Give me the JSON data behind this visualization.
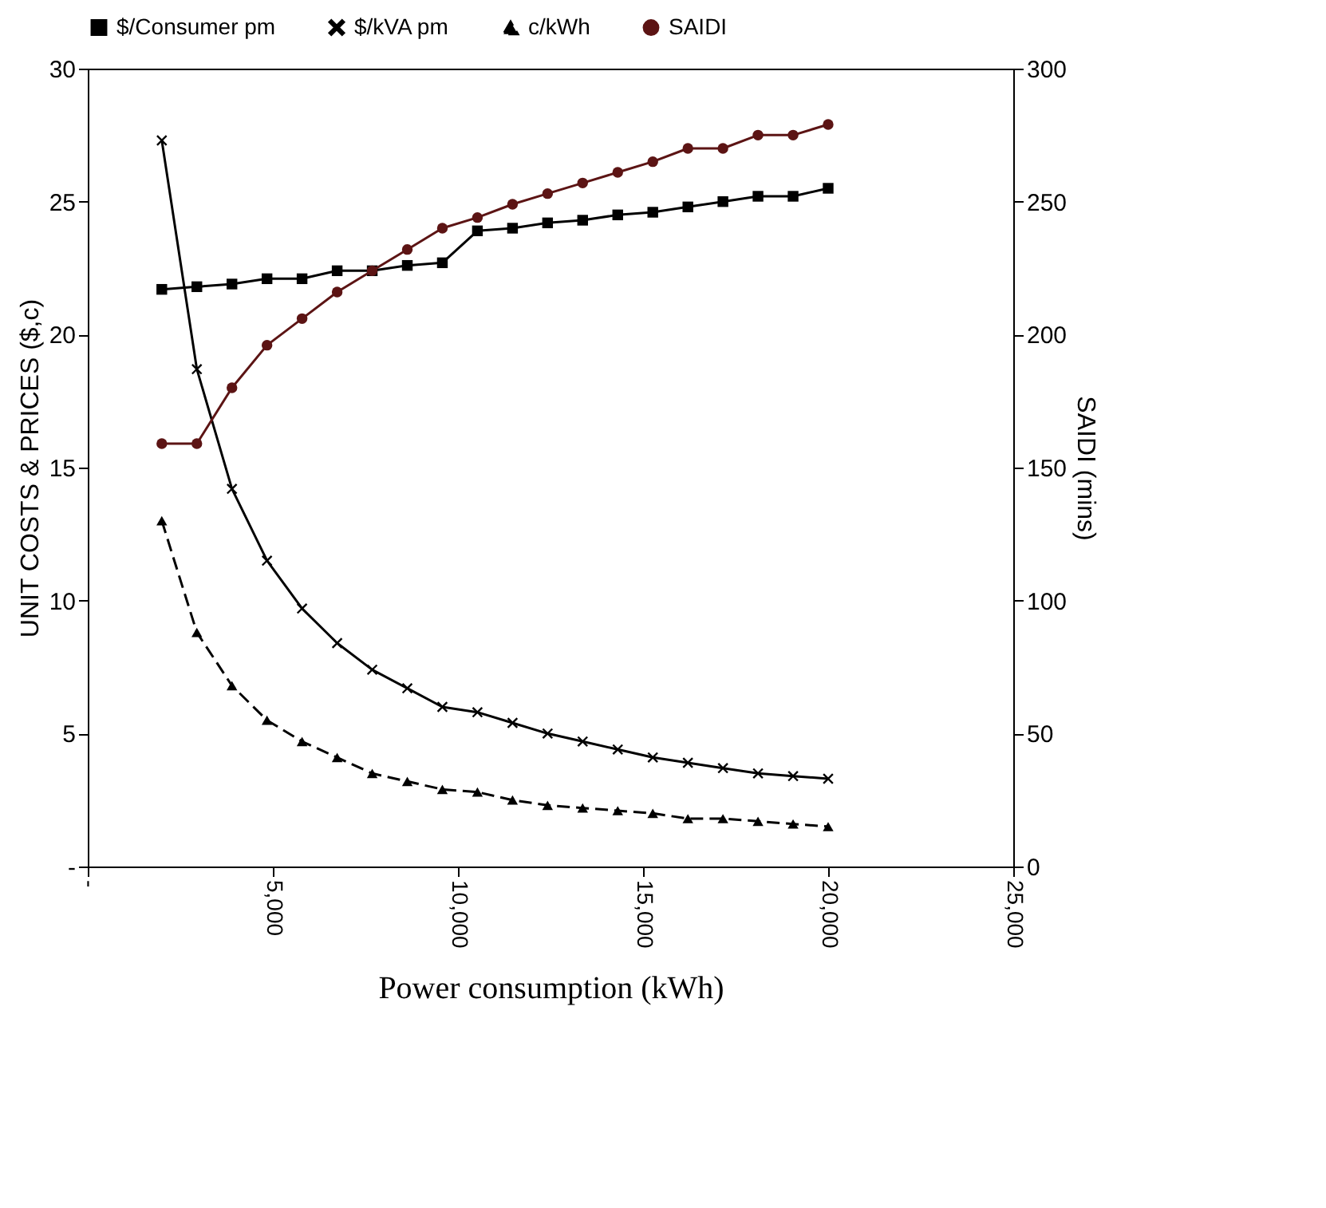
{
  "chart_data": {
    "type": "line",
    "xlabel": "Power consumption (kWh)",
    "ylabel": "UNIT COSTS & PRICES ($,c)",
    "y2label": "SAIDI (mins)",
    "x": [
      2000,
      2947,
      3895,
      4842,
      5789,
      6737,
      7684,
      8632,
      9579,
      10526,
      11474,
      12421,
      13368,
      14316,
      15263,
      16211,
      17158,
      18105,
      19053,
      20000
    ],
    "series": [
      {
        "name": "$/Consumer pm",
        "color": "#000000",
        "marker": "square",
        "line_style": "solid",
        "values": [
          21.7,
          21.8,
          21.9,
          22.1,
          22.1,
          22.4,
          22.4,
          22.6,
          22.7,
          23.9,
          24.0,
          24.2,
          24.3,
          24.5,
          24.6,
          24.8,
          25.0,
          25.2,
          25.2,
          25.5
        ]
      },
      {
        "name": "$/kVA pm",
        "color": "#000000",
        "marker": "cross",
        "line_style": "solid",
        "values": [
          27.3,
          18.7,
          14.2,
          11.5,
          9.7,
          8.4,
          7.4,
          6.7,
          6.0,
          5.8,
          5.4,
          5.0,
          4.7,
          4.4,
          4.1,
          3.9,
          3.7,
          3.5,
          3.4,
          3.3
        ]
      },
      {
        "name": "c/kWh",
        "color": "#000000",
        "marker": "triangle",
        "line_style": "dashed",
        "values": [
          13.0,
          8.8,
          6.8,
          5.5,
          4.7,
          4.1,
          3.5,
          3.2,
          2.9,
          2.8,
          2.5,
          2.3,
          2.2,
          2.1,
          2.0,
          1.8,
          1.8,
          1.7,
          1.6,
          1.5
        ]
      },
      {
        "name": "SAIDI",
        "color": "#5c1414",
        "marker": "circle",
        "line_style": "solid",
        "axis": "y2",
        "values": [
          159,
          159,
          180,
          196,
          206,
          216,
          224,
          232,
          240,
          244,
          249,
          253,
          257,
          261,
          265,
          270,
          270,
          275,
          275,
          279
        ]
      }
    ],
    "xlim": [
      0,
      25000
    ],
    "xticks": [
      {
        "value": 0,
        "label": "-"
      },
      {
        "value": 5000,
        "label": "5,000"
      },
      {
        "value": 10000,
        "label": "10,000"
      },
      {
        "value": 15000,
        "label": "15,000"
      },
      {
        "value": 20000,
        "label": "20,000"
      },
      {
        "value": 25000,
        "label": "25,000"
      }
    ],
    "ylim": [
      0,
      30
    ],
    "yticks": [
      {
        "value": 0,
        "label": "-"
      },
      5,
      10,
      15,
      20,
      25,
      30
    ],
    "y2lim": [
      0,
      300
    ],
    "y2ticks": [
      0,
      50,
      100,
      150,
      200,
      250,
      300
    ],
    "grid": false,
    "legend": "top"
  }
}
